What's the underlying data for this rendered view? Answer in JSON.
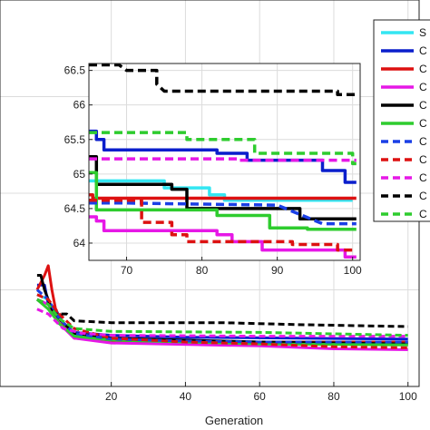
{
  "chart_data": [
    {
      "type": "line",
      "role": "main",
      "xlabel": "Generation",
      "ylabel": "",
      "xlim": [
        -10,
        103
      ],
      "ylim": [
        60,
        100
      ],
      "x_ticks": [
        "20",
        "40",
        "60",
        "80",
        "100"
      ],
      "grid": true,
      "legend_position": "top-right, partly cut off",
      "series": [
        {
          "name": "S",
          "color": "#33e6f2",
          "dash": "solid",
          "points": [
            [
              0,
              69.5
            ],
            [
              3,
              69.0
            ],
            [
              6,
              66.5
            ],
            [
              10,
              65.3
            ],
            [
              20,
              64.9
            ],
            [
              40,
              64.7
            ],
            [
              60,
              64.6
            ],
            [
              100,
              64.6
            ]
          ]
        },
        {
          "name": "C",
          "color": "#0a1ecc",
          "dash": "solid",
          "points": [
            [
              0,
              70.5
            ],
            [
              2,
              70.5
            ],
            [
              3,
              68.5
            ],
            [
              5,
              68.0
            ],
            [
              7,
              66.5
            ],
            [
              10,
              65.6
            ],
            [
              20,
              65.3
            ],
            [
              40,
              65.1
            ],
            [
              70,
              65.0
            ],
            [
              100,
              64.9
            ]
          ]
        },
        {
          "name": "C",
          "color": "#dd1111",
          "dash": "solid",
          "points": [
            [
              0,
              70.0
            ],
            [
              2,
              71.5
            ],
            [
              3,
              72.5
            ],
            [
              4,
              70.0
            ],
            [
              5,
              68.0
            ],
            [
              6,
              67.0
            ],
            [
              8,
              66.0
            ],
            [
              10,
              65.0
            ],
            [
              20,
              64.7
            ],
            [
              60,
              64.6
            ],
            [
              100,
              64.6
            ]
          ]
        },
        {
          "name": "C",
          "color": "#e618e6",
          "dash": "solid",
          "points": [
            [
              0,
              69.0
            ],
            [
              3,
              68.5
            ],
            [
              6,
              66.5
            ],
            [
              10,
              65.0
            ],
            [
              20,
              64.5
            ],
            [
              60,
              64.2
            ],
            [
              80,
              63.9
            ],
            [
              100,
              63.8
            ]
          ]
        },
        {
          "name": "C",
          "color": "#000000",
          "dash": "solid",
          "points": [
            [
              0,
              71.5
            ],
            [
              1,
              71.5
            ],
            [
              2,
              70.0
            ],
            [
              4,
              68.0
            ],
            [
              6,
              67.0
            ],
            [
              10,
              65.5
            ],
            [
              20,
              65.0
            ],
            [
              40,
              64.8
            ],
            [
              60,
              64.6
            ],
            [
              100,
              64.4
            ]
          ]
        },
        {
          "name": "C",
          "color": "#2ecc2e",
          "dash": "solid",
          "points": [
            [
              0,
              69.0
            ],
            [
              3,
              68.0
            ],
            [
              6,
              66.5
            ],
            [
              10,
              65.2
            ],
            [
              20,
              64.8
            ],
            [
              40,
              64.6
            ],
            [
              60,
              64.4
            ],
            [
              100,
              64.3
            ]
          ]
        },
        {
          "name": "C",
          "color": "#1a3fe6",
          "dash": "dashed",
          "points": [
            [
              0,
              70.0
            ],
            [
              3,
              69.0
            ],
            [
              6,
              67.0
            ],
            [
              10,
              65.5
            ],
            [
              20,
              64.9
            ],
            [
              40,
              64.7
            ],
            [
              60,
              64.6
            ],
            [
              100,
              64.6
            ]
          ]
        },
        {
          "name": "C",
          "color": "#dd1111",
          "dash": "dashed",
          "points": [
            [
              0,
              69.5
            ],
            [
              3,
              69.0
            ],
            [
              6,
              67.5
            ],
            [
              10,
              66.0
            ],
            [
              20,
              65.0
            ],
            [
              40,
              64.6
            ],
            [
              60,
              64.4
            ],
            [
              80,
              64.1
            ],
            [
              100,
              64.0
            ]
          ]
        },
        {
          "name": "C",
          "color": "#e618e6",
          "dash": "dashed",
          "points": [
            [
              0,
              68.0
            ],
            [
              3,
              67.5
            ],
            [
              7,
              66.0
            ],
            [
              12,
              65.5
            ],
            [
              20,
              65.3
            ],
            [
              60,
              65.2
            ],
            [
              100,
              65.2
            ]
          ]
        },
        {
          "name": "C",
          "color": "#000000",
          "dash": "dashed",
          "points": [
            [
              0,
              69.0
            ],
            [
              3,
              68.5
            ],
            [
              5,
              67.5
            ],
            [
              8,
              67.5
            ],
            [
              10,
              66.8
            ],
            [
              20,
              66.6
            ],
            [
              50,
              66.6
            ],
            [
              70,
              66.4
            ],
            [
              100,
              66.2
            ]
          ]
        },
        {
          "name": "C",
          "color": "#2ecc2e",
          "dash": "dashed",
          "points": [
            [
              0,
              69.0
            ],
            [
              3,
              68.5
            ],
            [
              6,
              67.0
            ],
            [
              10,
              66.0
            ],
            [
              20,
              65.7
            ],
            [
              60,
              65.6
            ],
            [
              100,
              65.3
            ]
          ]
        }
      ]
    },
    {
      "type": "line",
      "role": "inset",
      "xlabel": "",
      "ylabel": "",
      "xlim": [
        65,
        101
      ],
      "ylim": [
        63.75,
        66.6
      ],
      "x_ticks": [
        "70",
        "80",
        "90",
        "100"
      ],
      "y_ticks": [
        "64",
        "64.5",
        "65",
        "65.5",
        "66",
        "66.5"
      ],
      "grid": true,
      "series": [
        {
          "name": "S",
          "color": "#33e6f2",
          "dash": "solid",
          "points": [
            [
              65,
              64.9
            ],
            [
              75,
              64.9
            ],
            [
              75,
              64.8
            ],
            [
              81,
              64.8
            ],
            [
              81,
              64.7
            ],
            [
              83,
              64.7
            ],
            [
              83,
              64.62
            ],
            [
              100,
              64.62
            ]
          ]
        },
        {
          "name": "C",
          "color": "#0a1ecc",
          "dash": "solid",
          "points": [
            [
              65,
              65.62
            ],
            [
              66,
              65.62
            ],
            [
              66,
              65.5
            ],
            [
              67,
              65.5
            ],
            [
              67,
              65.35
            ],
            [
              82,
              65.35
            ],
            [
              82,
              65.3
            ],
            [
              86,
              65.3
            ],
            [
              86,
              65.2
            ],
            [
              96,
              65.2
            ],
            [
              96,
              65.05
            ],
            [
              99,
              65.05
            ],
            [
              99,
              64.88
            ],
            [
              100.5,
              64.88
            ]
          ]
        },
        {
          "name": "C",
          "color": "#dd1111",
          "dash": "solid",
          "points": [
            [
              65,
              64.7
            ],
            [
              65.5,
              64.7
            ],
            [
              65.5,
              64.65
            ],
            [
              100.5,
              64.65
            ]
          ]
        },
        {
          "name": "C",
          "color": "#e618e6",
          "dash": "solid",
          "points": [
            [
              65,
              64.38
            ],
            [
              66,
              64.38
            ],
            [
              66,
              64.32
            ],
            [
              67,
              64.32
            ],
            [
              67,
              64.18
            ],
            [
              82,
              64.18
            ],
            [
              82,
              64.12
            ],
            [
              84,
              64.12
            ],
            [
              84,
              64.02
            ],
            [
              88,
              64.02
            ],
            [
              88,
              63.9
            ],
            [
              99,
              63.9
            ],
            [
              99,
              63.8
            ],
            [
              100.5,
              63.8
            ]
          ]
        },
        {
          "name": "C",
          "color": "#000000",
          "dash": "solid",
          "points": [
            [
              65,
              65.25
            ],
            [
              66,
              65.25
            ],
            [
              66,
              64.85
            ],
            [
              76,
              64.85
            ],
            [
              76,
              64.78
            ],
            [
              78,
              64.78
            ],
            [
              78,
              64.5
            ],
            [
              93,
              64.5
            ],
            [
              93,
              64.35
            ],
            [
              100.5,
              64.35
            ]
          ]
        },
        {
          "name": "C",
          "color": "#2ecc2e",
          "dash": "solid",
          "points": [
            [
              65,
              65.02
            ],
            [
              66,
              65.02
            ],
            [
              66,
              64.48
            ],
            [
              82,
              64.48
            ],
            [
              82,
              64.4
            ],
            [
              89,
              64.4
            ],
            [
              89,
              64.22
            ],
            [
              94,
              64.22
            ],
            [
              94,
              64.2
            ],
            [
              100.5,
              64.2
            ]
          ]
        },
        {
          "name": "C",
          "color": "#1a3fe6",
          "dash": "dashed",
          "points": [
            [
              65,
              64.58
            ],
            [
              70,
              64.58
            ],
            [
              76,
              64.57
            ],
            [
              90,
              64.55
            ],
            [
              96,
              64.28
            ],
            [
              100.5,
              64.28
            ]
          ]
        },
        {
          "name": "C",
          "color": "#dd1111",
          "dash": "dashed",
          "points": [
            [
              65,
              64.62
            ],
            [
              72,
              64.62
            ],
            [
              72,
              64.3
            ],
            [
              76,
              64.3
            ],
            [
              76,
              64.12
            ],
            [
              78,
              64.12
            ],
            [
              78,
              64.02
            ],
            [
              92,
              64.02
            ],
            [
              92,
              63.98
            ],
            [
              98,
              63.98
            ],
            [
              98,
              63.9
            ],
            [
              100.5,
              63.9
            ]
          ]
        },
        {
          "name": "C",
          "color": "#e618e6",
          "dash": "dashed",
          "points": [
            [
              65,
              65.22
            ],
            [
              85,
              65.22
            ],
            [
              85,
              65.2
            ],
            [
              100.5,
              65.2
            ]
          ]
        },
        {
          "name": "C",
          "color": "#000000",
          "dash": "dashed",
          "points": [
            [
              65,
              66.58
            ],
            [
              69,
              66.58
            ],
            [
              70,
              66.5
            ],
            [
              74,
              66.5
            ],
            [
              74,
              66.3
            ],
            [
              75,
              66.2
            ],
            [
              98,
              66.2
            ],
            [
              98,
              66.15
            ],
            [
              100.5,
              66.15
            ]
          ]
        },
        {
          "name": "C",
          "color": "#2ecc2e",
          "dash": "dashed",
          "points": [
            [
              65,
              65.6
            ],
            [
              78,
              65.6
            ],
            [
              78,
              65.5
            ],
            [
              87,
              65.5
            ],
            [
              87,
              65.3
            ],
            [
              100,
              65.3
            ],
            [
              100,
              65.15
            ],
            [
              100.5,
              65.15
            ]
          ]
        }
      ]
    }
  ]
}
